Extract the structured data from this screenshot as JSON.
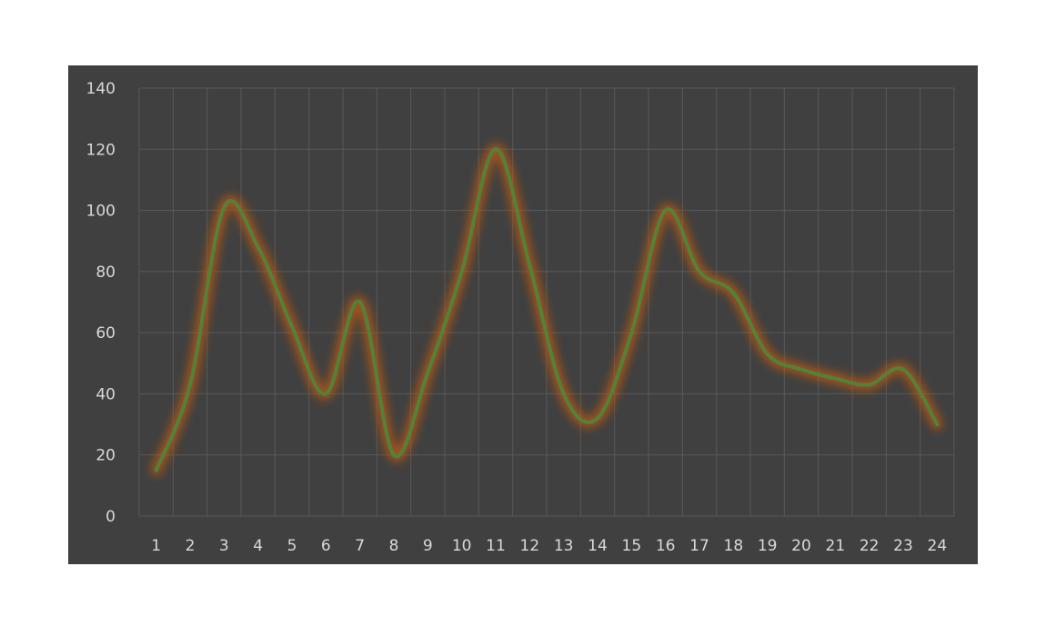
{
  "chart_data": {
    "type": "line",
    "title": "",
    "xlabel": "",
    "ylabel": "",
    "categories": [
      "1",
      "2",
      "3",
      "4",
      "5",
      "6",
      "7",
      "8",
      "9",
      "10",
      "11",
      "12",
      "13",
      "14",
      "15",
      "16",
      "17",
      "18",
      "19",
      "20",
      "21",
      "22",
      "23",
      "24"
    ],
    "series": [
      {
        "values": [
          15,
          43,
          101,
          88,
          62,
          40,
          70,
          20,
          47,
          80,
          120,
          82,
          40,
          32,
          60,
          100,
          80,
          73,
          53,
          48,
          45,
          43,
          48,
          30
        ]
      }
    ],
    "ylim": [
      0,
      140
    ],
    "yticks": [
      0,
      20,
      40,
      60,
      80,
      100,
      120,
      140
    ],
    "grid": true,
    "legend": "none",
    "colors": {
      "background": "#404040",
      "line": "#548235",
      "glow": "#c55a11",
      "grid": "#595959",
      "text": "#d9d9d9"
    }
  }
}
